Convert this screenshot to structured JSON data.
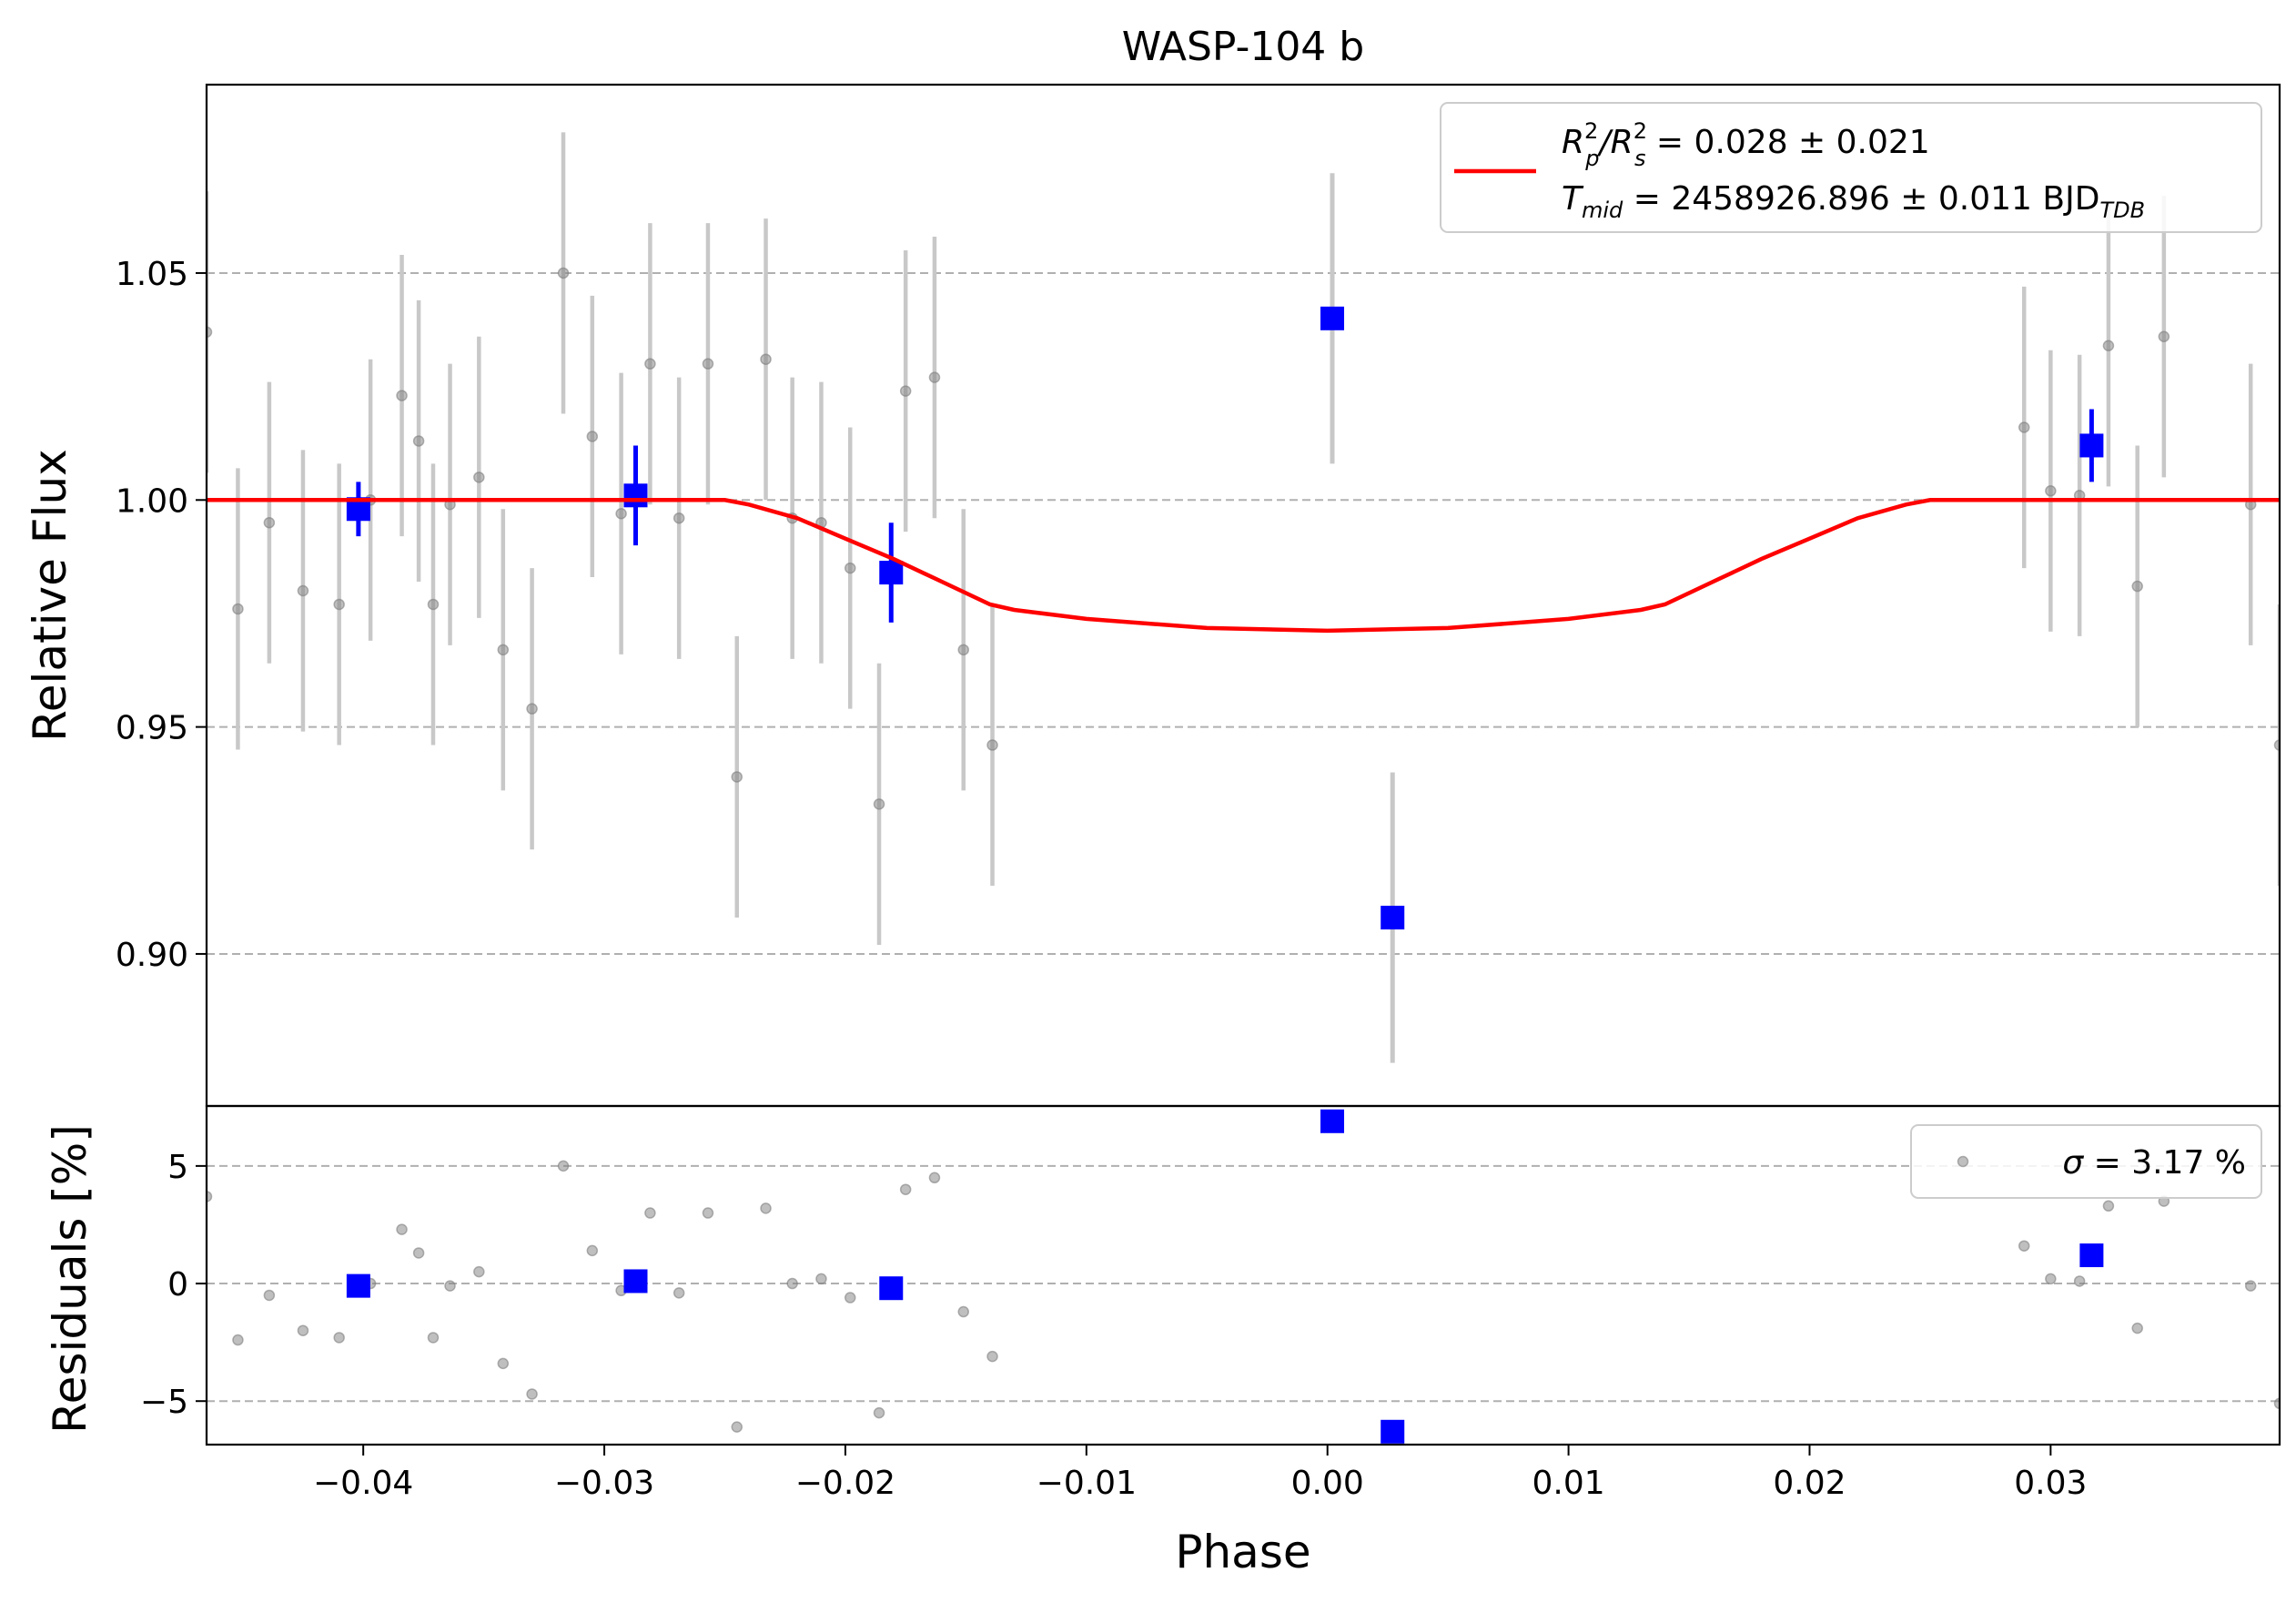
{
  "figure": {
    "title": "WASP-104 b",
    "xlabel": "Phase",
    "colors": {
      "model": "#ff0000",
      "binned": "#0000ff",
      "raw": "#808080",
      "errbar": "#c8c8c8",
      "grid": "#b0b0b0"
    }
  },
  "legend_top": {
    "line1": {
      "base": "R",
      "sup1": "2",
      "sub1": "p",
      "slash": "/R",
      "sup2": "2",
      "sub2": "s",
      "rest": " = 0.028 ± 0.021"
    },
    "line2": {
      "base": "T",
      "sub": "mid",
      "rest": " = 2458926.896 ± 0.011 BJD",
      "sub2": "TDB"
    }
  },
  "legend_bottom": {
    "sigma": "σ",
    "rest": " = 3.17 %"
  },
  "chart_data": [
    {
      "type": "scatter",
      "panel": "light-curve",
      "ylabel": "Relative Flux",
      "xlim": [
        -0.0465,
        0.0395
      ],
      "ylim": [
        0.8665,
        1.0915
      ],
      "grid": "y-dashed",
      "legend_placement": "top-right",
      "x_ticks": [
        -0.04,
        -0.03,
        -0.02,
        -0.01,
        0.0,
        0.01,
        0.02,
        0.03
      ],
      "x_tick_labels": [
        "−0.04",
        "−0.03",
        "−0.02",
        "−0.01",
        "0.00",
        "0.01",
        "0.02",
        "0.03"
      ],
      "y_ticks": [
        0.9,
        0.95,
        1.0,
        1.05
      ],
      "y_tick_labels": [
        "0.90",
        "0.95",
        "1.00",
        "1.05"
      ],
      "series": [
        {
          "kind": "raw",
          "points": [
            {
              "x": -0.0465,
              "y": 1.037,
              "err": 0.031
            },
            {
              "x": -0.0452,
              "y": 0.976,
              "err": 0.031
            },
            {
              "x": -0.0439,
              "y": 0.995,
              "err": 0.031
            },
            {
              "x": -0.0425,
              "y": 0.98,
              "err": 0.031
            },
            {
              "x": -0.041,
              "y": 0.977,
              "err": 0.031
            },
            {
              "x": -0.0397,
              "y": 1.0,
              "err": 0.031
            },
            {
              "x": -0.0384,
              "y": 1.023,
              "err": 0.031
            },
            {
              "x": -0.0377,
              "y": 1.013,
              "err": 0.031
            },
            {
              "x": -0.0371,
              "y": 0.977,
              "err": 0.031
            },
            {
              "x": -0.0364,
              "y": 0.999,
              "err": 0.031
            },
            {
              "x": -0.0352,
              "y": 1.005,
              "err": 0.031
            },
            {
              "x": -0.0342,
              "y": 0.967,
              "err": 0.031
            },
            {
              "x": -0.033,
              "y": 0.954,
              "err": 0.031
            },
            {
              "x": -0.0317,
              "y": 1.05,
              "err": 0.031
            },
            {
              "x": -0.0305,
              "y": 1.014,
              "err": 0.031
            },
            {
              "x": -0.0293,
              "y": 0.997,
              "err": 0.031
            },
            {
              "x": -0.0281,
              "y": 1.03,
              "err": 0.031
            },
            {
              "x": -0.0269,
              "y": 0.996,
              "err": 0.031
            },
            {
              "x": -0.0257,
              "y": 1.03,
              "err": 0.031
            },
            {
              "x": -0.0245,
              "y": 0.939,
              "err": 0.031
            },
            {
              "x": -0.0233,
              "y": 1.031,
              "err": 0.031
            },
            {
              "x": -0.0222,
              "y": 0.996,
              "err": 0.031
            },
            {
              "x": -0.021,
              "y": 0.995,
              "err": 0.031
            },
            {
              "x": -0.0198,
              "y": 0.985,
              "err": 0.031
            },
            {
              "x": -0.0186,
              "y": 0.933,
              "err": 0.031
            },
            {
              "x": -0.0175,
              "y": 1.024,
              "err": 0.031
            },
            {
              "x": -0.0163,
              "y": 1.027,
              "err": 0.031
            },
            {
              "x": -0.0151,
              "y": 0.967,
              "err": 0.031
            },
            {
              "x": -0.0139,
              "y": 0.946,
              "err": 0.031
            },
            {
              "x": 0.0289,
              "y": 1.016,
              "err": 0.031
            },
            {
              "x": 0.03,
              "y": 1.002,
              "err": 0.031
            },
            {
              "x": 0.0312,
              "y": 1.001,
              "err": 0.031
            },
            {
              "x": 0.0324,
              "y": 1.034,
              "err": 0.031
            },
            {
              "x": 0.0336,
              "y": 0.981,
              "err": 0.031
            },
            {
              "x": 0.0347,
              "y": 1.036,
              "err": 0.031
            },
            {
              "x": 0.0383,
              "y": 0.999,
              "err": 0.031
            },
            {
              "x": 0.0395,
              "y": 0.946,
              "err": 0.031
            }
          ]
        },
        {
          "kind": "binned",
          "points": [
            {
              "x": -0.0402,
              "y": 0.998,
              "err": 0.006
            },
            {
              "x": -0.0287,
              "y": 1.001,
              "err": 0.011
            },
            {
              "x": -0.0181,
              "y": 0.984,
              "err": 0.011
            },
            {
              "x": 0.0002,
              "y": 1.04,
              "err": 0.032
            },
            {
              "x": 0.0027,
              "y": 0.908,
              "err": 0.032
            },
            {
              "x": 0.0317,
              "y": 1.012,
              "err": 0.008
            }
          ]
        },
        {
          "kind": "model",
          "points": [
            {
              "x": -0.0465,
              "y": 1.0
            },
            {
              "x": -0.025,
              "y": 1.0
            },
            {
              "x": -0.024,
              "y": 0.999
            },
            {
              "x": -0.022,
              "y": 0.996
            },
            {
              "x": -0.02,
              "y": 0.9915
            },
            {
              "x": -0.018,
              "y": 0.987
            },
            {
              "x": -0.016,
              "y": 0.982
            },
            {
              "x": -0.014,
              "y": 0.977
            },
            {
              "x": -0.013,
              "y": 0.9758
            },
            {
              "x": -0.01,
              "y": 0.9738
            },
            {
              "x": -0.005,
              "y": 0.9718
            },
            {
              "x": 0.0,
              "y": 0.9712
            },
            {
              "x": 0.005,
              "y": 0.9718
            },
            {
              "x": 0.01,
              "y": 0.9738
            },
            {
              "x": 0.013,
              "y": 0.9758
            },
            {
              "x": 0.014,
              "y": 0.977
            },
            {
              "x": 0.016,
              "y": 0.982
            },
            {
              "x": 0.018,
              "y": 0.987
            },
            {
              "x": 0.02,
              "y": 0.9915
            },
            {
              "x": 0.022,
              "y": 0.996
            },
            {
              "x": 0.024,
              "y": 0.999
            },
            {
              "x": 0.025,
              "y": 1.0
            },
            {
              "x": 0.0395,
              "y": 1.0
            }
          ]
        }
      ]
    },
    {
      "type": "scatter",
      "panel": "residuals",
      "ylabel": "Residuals [%]",
      "xlim": [
        -0.0465,
        0.0395
      ],
      "ylim": [
        -6.85,
        7.55
      ],
      "grid": "y-dashed",
      "legend_placement": "top-right",
      "y_ticks": [
        -5,
        0,
        5
      ],
      "y_tick_labels": [
        "−5",
        "0",
        "5"
      ],
      "series": [
        {
          "kind": "raw",
          "points": [
            {
              "x": -0.0465,
              "y": 3.7
            },
            {
              "x": -0.0452,
              "y": -2.4
            },
            {
              "x": -0.0439,
              "y": -0.5
            },
            {
              "x": -0.0425,
              "y": -2.0
            },
            {
              "x": -0.041,
              "y": -2.3
            },
            {
              "x": -0.0397,
              "y": 0.0
            },
            {
              "x": -0.0384,
              "y": 2.3
            },
            {
              "x": -0.0377,
              "y": 1.3
            },
            {
              "x": -0.0371,
              "y": -2.3
            },
            {
              "x": -0.0364,
              "y": -0.1
            },
            {
              "x": -0.0352,
              "y": 0.5
            },
            {
              "x": -0.0342,
              "y": -3.4
            },
            {
              "x": -0.033,
              "y": -4.7
            },
            {
              "x": -0.0317,
              "y": 5.0
            },
            {
              "x": -0.0305,
              "y": 1.4
            },
            {
              "x": -0.0293,
              "y": -0.3
            },
            {
              "x": -0.0281,
              "y": 3.0
            },
            {
              "x": -0.0269,
              "y": -0.4
            },
            {
              "x": -0.0257,
              "y": 3.0
            },
            {
              "x": -0.0245,
              "y": -6.1
            },
            {
              "x": -0.0233,
              "y": 3.2
            },
            {
              "x": -0.0222,
              "y": 0.0
            },
            {
              "x": -0.021,
              "y": 0.2
            },
            {
              "x": -0.0198,
              "y": -0.6
            },
            {
              "x": -0.0186,
              "y": -5.5
            },
            {
              "x": -0.0175,
              "y": 4.0
            },
            {
              "x": -0.0163,
              "y": 4.5
            },
            {
              "x": -0.0151,
              "y": -1.2
            },
            {
              "x": -0.0139,
              "y": -3.1
            },
            {
              "x": 0.0289,
              "y": 1.6
            },
            {
              "x": 0.03,
              "y": 0.2
            },
            {
              "x": 0.0312,
              "y": 0.1
            },
            {
              "x": 0.0324,
              "y": 3.3
            },
            {
              "x": 0.0336,
              "y": -1.9
            },
            {
              "x": 0.0347,
              "y": 3.5
            },
            {
              "x": 0.0383,
              "y": -0.1
            },
            {
              "x": 0.0395,
              "y": -5.1
            }
          ]
        },
        {
          "kind": "binned",
          "points": [
            {
              "x": -0.0402,
              "y": -0.1
            },
            {
              "x": -0.0287,
              "y": 0.1
            },
            {
              "x": -0.0181,
              "y": -0.2
            },
            {
              "x": 0.0002,
              "y": 6.9
            },
            {
              "x": 0.0027,
              "y": -6.3
            },
            {
              "x": 0.0317,
              "y": 1.2
            }
          ]
        }
      ]
    }
  ]
}
